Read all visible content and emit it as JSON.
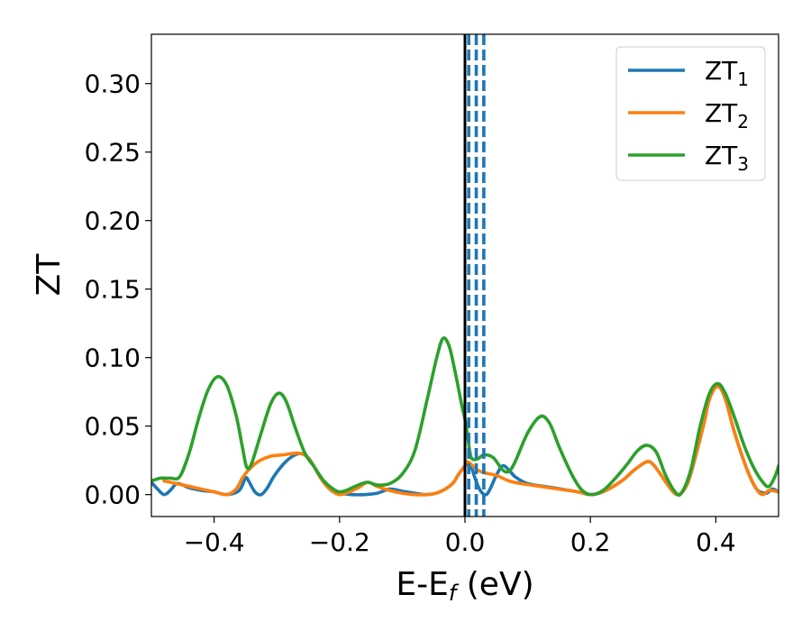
{
  "chart_data": {
    "type": "line",
    "xlabel": "E-E",
    "xlabel_sub": "f",
    "xlabel_unit": " (eV)",
    "ylabel": "ZT",
    "xlim": [
      -0.5,
      0.5
    ],
    "ylim": [
      -0.016,
      0.336
    ],
    "x_ticks": [
      -0.4,
      -0.2,
      0.0,
      0.2,
      0.4
    ],
    "x_tick_labels": [
      "−0.4",
      "−0.2",
      "0.0",
      "0.2",
      "0.4"
    ],
    "y_ticks": [
      0.0,
      0.05,
      0.1,
      0.15,
      0.2,
      0.25,
      0.3
    ],
    "y_tick_labels": [
      "0.00",
      "0.05",
      "0.10",
      "0.15",
      "0.20",
      "0.25",
      "0.30"
    ],
    "grid": false,
    "legend_position": "top-right",
    "vline_solid": {
      "x": 0.0,
      "color": "#000000"
    },
    "vlines_dashed": {
      "x": [
        0.006,
        0.018,
        0.03
      ],
      "color": "#1f77b4"
    },
    "series": [
      {
        "name": "ZT",
        "name_sub": "1",
        "color": "#1f77b4",
        "points": [
          [
            -0.5,
            0.009
          ],
          [
            -0.49,
            0.004
          ],
          [
            -0.48,
            0.0
          ],
          [
            -0.47,
            0.003
          ],
          [
            -0.46,
            0.008
          ],
          [
            -0.45,
            0.007
          ],
          [
            -0.44,
            0.005
          ],
          [
            -0.42,
            0.003
          ],
          [
            -0.4,
            0.002
          ],
          [
            -0.38,
            0.0
          ],
          [
            -0.36,
            0.003
          ],
          [
            -0.35,
            0.012
          ],
          [
            -0.345,
            0.01
          ],
          [
            -0.335,
            0.002
          ],
          [
            -0.325,
            0.0
          ],
          [
            -0.315,
            0.005
          ],
          [
            -0.305,
            0.013
          ],
          [
            -0.29,
            0.022
          ],
          [
            -0.275,
            0.028
          ],
          [
            -0.262,
            0.03
          ],
          [
            -0.25,
            0.027
          ],
          [
            -0.24,
            0.02
          ],
          [
            -0.23,
            0.012
          ],
          [
            -0.22,
            0.006
          ],
          [
            -0.21,
            0.002
          ],
          [
            -0.2,
            0.001
          ],
          [
            -0.18,
            0.0
          ],
          [
            -0.16,
            0.0
          ],
          [
            -0.14,
            0.001
          ],
          [
            -0.12,
            0.004
          ],
          [
            -0.1,
            0.0025
          ],
          [
            -0.08,
            0.001
          ],
          [
            -0.06,
            0.0
          ],
          [
            -0.04,
            0.002
          ],
          [
            -0.02,
            0.008
          ],
          [
            -0.01,
            0.015
          ],
          [
            0.0,
            0.021
          ],
          [
            0.004,
            0.024
          ],
          [
            0.01,
            0.02
          ],
          [
            0.016,
            0.012
          ],
          [
            0.022,
            0.005
          ],
          [
            0.028,
            0.001
          ],
          [
            0.034,
            0.0
          ],
          [
            0.04,
            0.004
          ],
          [
            0.05,
            0.014
          ],
          [
            0.06,
            0.021
          ],
          [
            0.07,
            0.018
          ],
          [
            0.08,
            0.013
          ],
          [
            0.1,
            0.008
          ],
          [
            0.14,
            0.005
          ],
          [
            0.18,
            0.002
          ],
          [
            0.2,
            0.0
          ],
          [
            0.22,
            0.002
          ],
          [
            0.25,
            0.01
          ],
          [
            0.27,
            0.018
          ],
          [
            0.29,
            0.024
          ],
          [
            0.3,
            0.022
          ],
          [
            0.31,
            0.016
          ],
          [
            0.33,
            0.003
          ],
          [
            0.34,
            0.0
          ],
          [
            0.35,
            0.004
          ],
          [
            0.36,
            0.015
          ],
          [
            0.38,
            0.05
          ],
          [
            0.39,
            0.07
          ],
          [
            0.403,
            0.079
          ],
          [
            0.415,
            0.07
          ],
          [
            0.43,
            0.045
          ],
          [
            0.45,
            0.018
          ],
          [
            0.465,
            0.004
          ],
          [
            0.48,
            0.001
          ],
          [
            0.49,
            0.004
          ],
          [
            0.5,
            0.002
          ]
        ]
      },
      {
        "name": "ZT",
        "name_sub": "2",
        "color": "#ff7f0e",
        "points": [
          [
            -0.48,
            0.01
          ],
          [
            -0.46,
            0.008
          ],
          [
            -0.44,
            0.006
          ],
          [
            -0.42,
            0.004
          ],
          [
            -0.4,
            0.002
          ],
          [
            -0.38,
            0.0
          ],
          [
            -0.365,
            0.004
          ],
          [
            -0.355,
            0.012
          ],
          [
            -0.345,
            0.018
          ],
          [
            -0.33,
            0.024
          ],
          [
            -0.31,
            0.028
          ],
          [
            -0.29,
            0.029
          ],
          [
            -0.275,
            0.03
          ],
          [
            -0.262,
            0.03
          ],
          [
            -0.25,
            0.027
          ],
          [
            -0.24,
            0.02
          ],
          [
            -0.23,
            0.012
          ],
          [
            -0.22,
            0.006
          ],
          [
            -0.21,
            0.002
          ],
          [
            -0.2,
            0.0
          ],
          [
            -0.19,
            0.001
          ],
          [
            -0.17,
            0.005
          ],
          [
            -0.155,
            0.009
          ],
          [
            -0.14,
            0.006
          ],
          [
            -0.12,
            0.003
          ],
          [
            -0.1,
            0.001
          ],
          [
            -0.08,
            0.0
          ],
          [
            -0.06,
            0.0
          ],
          [
            -0.04,
            0.002
          ],
          [
            -0.02,
            0.008
          ],
          [
            -0.01,
            0.015
          ],
          [
            0.0,
            0.021
          ],
          [
            0.004,
            0.024
          ],
          [
            0.01,
            0.022
          ],
          [
            0.02,
            0.018
          ],
          [
            0.03,
            0.016
          ],
          [
            0.05,
            0.014
          ],
          [
            0.07,
            0.01
          ],
          [
            0.09,
            0.008
          ],
          [
            0.12,
            0.006
          ],
          [
            0.15,
            0.004
          ],
          [
            0.18,
            0.002
          ],
          [
            0.2,
            0.0
          ],
          [
            0.22,
            0.002
          ],
          [
            0.25,
            0.01
          ],
          [
            0.27,
            0.018
          ],
          [
            0.29,
            0.024
          ],
          [
            0.3,
            0.022
          ],
          [
            0.31,
            0.016
          ],
          [
            0.33,
            0.003
          ],
          [
            0.34,
            0.0
          ],
          [
            0.35,
            0.004
          ],
          [
            0.36,
            0.015
          ],
          [
            0.38,
            0.05
          ],
          [
            0.39,
            0.07
          ],
          [
            0.403,
            0.079
          ],
          [
            0.415,
            0.07
          ],
          [
            0.43,
            0.045
          ],
          [
            0.45,
            0.018
          ],
          [
            0.465,
            0.004
          ],
          [
            0.475,
            0.0
          ],
          [
            0.485,
            0.003
          ],
          [
            0.5,
            0.002
          ]
        ]
      },
      {
        "name": "ZT",
        "name_sub": "3",
        "color": "#2ca02c",
        "points": [
          [
            -0.5,
            0.01
          ],
          [
            -0.485,
            0.012
          ],
          [
            -0.47,
            0.012
          ],
          [
            -0.455,
            0.013
          ],
          [
            -0.44,
            0.03
          ],
          [
            -0.425,
            0.055
          ],
          [
            -0.41,
            0.076
          ],
          [
            -0.395,
            0.086
          ],
          [
            -0.38,
            0.08
          ],
          [
            -0.365,
            0.058
          ],
          [
            -0.355,
            0.035
          ],
          [
            -0.348,
            0.02
          ],
          [
            -0.34,
            0.023
          ],
          [
            -0.325,
            0.045
          ],
          [
            -0.31,
            0.066
          ],
          [
            -0.297,
            0.074
          ],
          [
            -0.285,
            0.068
          ],
          [
            -0.27,
            0.048
          ],
          [
            -0.255,
            0.03
          ],
          [
            -0.24,
            0.02
          ],
          [
            -0.225,
            0.01
          ],
          [
            -0.21,
            0.004
          ],
          [
            -0.2,
            0.002
          ],
          [
            -0.19,
            0.003
          ],
          [
            -0.17,
            0.007
          ],
          [
            -0.155,
            0.009
          ],
          [
            -0.14,
            0.007
          ],
          [
            -0.12,
            0.008
          ],
          [
            -0.1,
            0.015
          ],
          [
            -0.08,
            0.032
          ],
          [
            -0.06,
            0.07
          ],
          [
            -0.045,
            0.1
          ],
          [
            -0.035,
            0.114
          ],
          [
            -0.025,
            0.108
          ],
          [
            -0.015,
            0.088
          ],
          [
            -0.005,
            0.065
          ],
          [
            0.0,
            0.055
          ],
          [
            0.005,
            0.04
          ],
          [
            0.01,
            0.027
          ],
          [
            0.02,
            0.026
          ],
          [
            0.03,
            0.029
          ],
          [
            0.045,
            0.027
          ],
          [
            0.06,
            0.018
          ],
          [
            0.07,
            0.017
          ],
          [
            0.08,
            0.024
          ],
          [
            0.1,
            0.045
          ],
          [
            0.12,
            0.057
          ],
          [
            0.135,
            0.052
          ],
          [
            0.15,
            0.035
          ],
          [
            0.17,
            0.015
          ],
          [
            0.185,
            0.004
          ],
          [
            0.2,
            0.0
          ],
          [
            0.22,
            0.003
          ],
          [
            0.24,
            0.012
          ],
          [
            0.26,
            0.023
          ],
          [
            0.275,
            0.032
          ],
          [
            0.29,
            0.036
          ],
          [
            0.305,
            0.031
          ],
          [
            0.32,
            0.014
          ],
          [
            0.335,
            0.002
          ],
          [
            0.345,
            0.001
          ],
          [
            0.36,
            0.018
          ],
          [
            0.375,
            0.05
          ],
          [
            0.39,
            0.074
          ],
          [
            0.403,
            0.081
          ],
          [
            0.415,
            0.074
          ],
          [
            0.43,
            0.056
          ],
          [
            0.445,
            0.036
          ],
          [
            0.46,
            0.02
          ],
          [
            0.475,
            0.009
          ],
          [
            0.485,
            0.006
          ],
          [
            0.495,
            0.014
          ],
          [
            0.5,
            0.021
          ]
        ]
      }
    ]
  }
}
